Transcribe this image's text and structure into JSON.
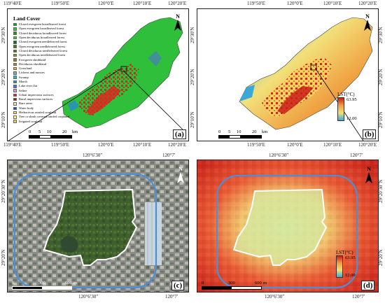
{
  "top_axis": {
    "ticks_a": [
      "119°40′E",
      "119°50′E",
      "120°0′E",
      "120°10′E",
      "120°20′E"
    ],
    "ticks_b": [
      "119°50′E",
      "120°0′E",
      "120°10′E",
      "120°20′E"
    ]
  },
  "bottom_axis": {
    "ticks_a": [
      "119°40′E",
      "119°50′E",
      "120°0′E",
      "120°10′E",
      "120°20′E"
    ],
    "ticks_b": [
      "119°50′E",
      "120°0′E",
      "120°10′E",
      "120°20′E"
    ]
  },
  "left_axis": [
    "29°30′N",
    "29°20′N",
    "29°10′N"
  ],
  "right_axis": [
    "29°30′N",
    "29°20′N",
    "29°10′N"
  ],
  "panel_a": {
    "label": "(a)",
    "legend_title": "Land Cover",
    "legend": [
      {
        "name": "Closed evergreen broadleaved forest",
        "color": "#1a9e2f"
      },
      {
        "name": "Open evergreen broadleaved forest",
        "color": "#33c23b"
      },
      {
        "name": "Closed deciduous broadleaved forest",
        "color": "#2f8f1f"
      },
      {
        "name": "Open deciduous broadleaved forest",
        "color": "#6cb83a"
      },
      {
        "name": "Closed evergreen needleleaved forest",
        "color": "#0f6b2a"
      },
      {
        "name": "Open evergreen needleleaved forest",
        "color": "#3a7a2a"
      },
      {
        "name": "Closed deciduous needleleaved forest",
        "color": "#556b2f"
      },
      {
        "name": "Open deciduous needleleaved forest",
        "color": "#7a8f3a"
      },
      {
        "name": "Evergreen shrubland",
        "color": "#8a7a2a"
      },
      {
        "name": "Deciduous shrubland",
        "color": "#a0864a"
      },
      {
        "name": "Grassland",
        "color": "#d8b25a"
      },
      {
        "name": "Lichens and mosses",
        "color": "#7fa8a8"
      },
      {
        "name": "Swamp",
        "color": "#3fb0b5"
      },
      {
        "name": "Marsh",
        "color": "#2a8fbf"
      },
      {
        "name": "Lake river flat",
        "color": "#4f6fd8"
      },
      {
        "name": "Saline",
        "color": "#c9a0dc"
      },
      {
        "name": "Urban impervious surfaces",
        "color": "#d62a1e"
      },
      {
        "name": "Rural impervious surfaces",
        "color": "#8b2323"
      },
      {
        "name": "Bare areas",
        "color": "#e8e0c8"
      },
      {
        "name": "Water body",
        "color": "#1f4fb0"
      },
      {
        "name": "Herbaceous rainfed cropland",
        "color": "#f2e26a"
      },
      {
        "name": "Tree or shrub covered rainfed cropland",
        "color": "#f7f0a0"
      },
      {
        "name": "Irrigated cropland",
        "color": "#e8c86a"
      }
    ],
    "scale": [
      "0",
      "5",
      "10",
      "20"
    ],
    "scale_unit": "km"
  },
  "panel_b": {
    "label": "(b)",
    "legend_title": "LST(°C)",
    "max": "63.95",
    "min": "12.00",
    "scale": [
      "0",
      "5",
      "10",
      "20"
    ],
    "scale_unit": "km"
  },
  "panel_c": {
    "label": "(c)",
    "top_ticks": [
      "120°6′30″",
      "120°7′"
    ],
    "bottom_ticks": [
      "120°6′30″",
      "120°7′"
    ],
    "left_ticks": [
      "29°20′30″N",
      "29°20′N"
    ],
    "scale": [
      "0",
      "300",
      "600"
    ],
    "scale_unit": "m"
  },
  "panel_d": {
    "label": "(d)",
    "top_ticks": [
      "120°6′30″",
      "120°7′"
    ],
    "bottom_ticks": [
      "120°6′30″",
      "120°7′"
    ],
    "right_ticks": [
      "29°20′30″N",
      "29°20′N"
    ],
    "legend_title": "LST(°C)",
    "max": "63.95",
    "min": "12.00",
    "scale": [
      "0",
      "300",
      "600"
    ],
    "scale_unit": "m"
  },
  "north_label": "N"
}
